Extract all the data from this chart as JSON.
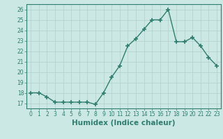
{
  "x": [
    0,
    1,
    2,
    3,
    4,
    5,
    6,
    7,
    8,
    9,
    10,
    11,
    12,
    13,
    14,
    15,
    16,
    17,
    18,
    19,
    20,
    21,
    22,
    23
  ],
  "y": [
    18.0,
    18.0,
    17.6,
    17.1,
    17.1,
    17.1,
    17.1,
    17.1,
    16.9,
    18.0,
    19.5,
    20.6,
    22.5,
    23.2,
    24.1,
    25.0,
    25.0,
    26.0,
    22.9,
    22.9,
    23.3,
    22.5,
    21.4,
    20.6
  ],
  "line_color": "#2e7d6e",
  "marker": "+",
  "marker_size": 4,
  "bg_color": "#cce8e4",
  "grid_color": "#b0d0cc",
  "xlabel": "Humidex (Indice chaleur)",
  "xlim": [
    -0.5,
    23.5
  ],
  "ylim": [
    16.5,
    26.5
  ],
  "yticks": [
    17,
    18,
    19,
    20,
    21,
    22,
    23,
    24,
    25,
    26
  ],
  "xticks": [
    0,
    1,
    2,
    3,
    4,
    5,
    6,
    7,
    8,
    9,
    10,
    11,
    12,
    13,
    14,
    15,
    16,
    17,
    18,
    19,
    20,
    21,
    22,
    23
  ],
  "tick_color": "#2e7d6e",
  "xlabel_fontsize": 7.5,
  "tick_fontsize": 5.5,
  "spine_color": "#2e7d6e",
  "linewidth": 1.0,
  "marker_linewidth": 1.2
}
